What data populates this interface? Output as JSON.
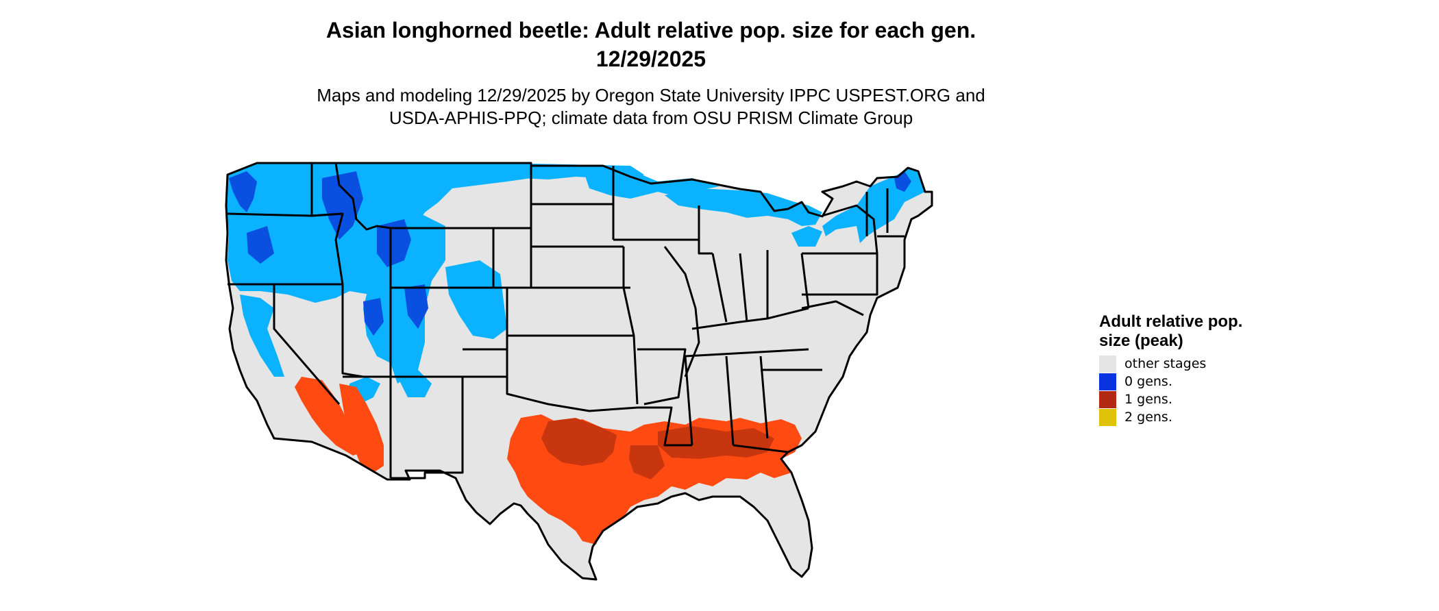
{
  "title_line1": "Asian longhorned beetle: Adult relative pop. size for each gen.",
  "title_line2": "12/29/2025",
  "subtitle_line1": "Maps and modeling 12/29/2025 by Oregon State University IPPC USPEST.ORG and",
  "subtitle_line2": "USDA-APHIS-PPQ; climate data from OSU PRISM Climate Group",
  "legend": {
    "title": "Adult relative pop. size (peak)",
    "items": [
      {
        "label": "other stages",
        "color": "#e5e5e5"
      },
      {
        "label": "0 gens.",
        "color": "#0a33e0"
      },
      {
        "label": "1 gens.",
        "color": "#b22a13"
      },
      {
        "label": "2 gens.",
        "color": "#dfc20a"
      }
    ]
  },
  "map_colors": {
    "land": "#e5e5e5",
    "light_blue": "#0bb2ff",
    "dark_blue": "#0a50e0",
    "orange": "#ff4a12",
    "dark_red": "#c8360f",
    "border": "#000000"
  }
}
